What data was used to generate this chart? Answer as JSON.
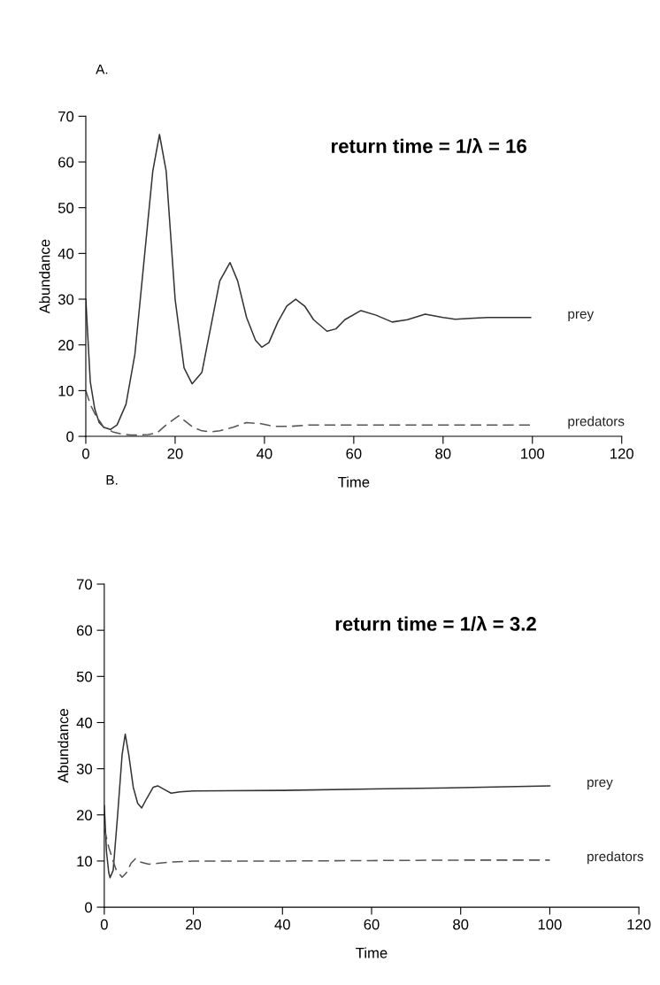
{
  "chart_data": [
    {
      "type": "line",
      "title": "A.",
      "xlabel": "Time",
      "ylabel": "Abundance",
      "annotations": [
        "return time = 1/λ = 16"
      ],
      "xlim": [
        0,
        120
      ],
      "xticks": [
        0,
        20,
        40,
        60,
        80,
        100,
        120
      ],
      "ylim": [
        0,
        70
      ],
      "yticks": [
        0,
        10,
        20,
        30,
        40,
        50,
        60,
        70
      ],
      "grid": false,
      "legend": false,
      "series": [
        {
          "name": "prey",
          "color": "#333333",
          "line_style": "solid",
          "x": [
            0,
            1,
            2,
            3,
            4,
            5.5,
            7,
            9,
            11,
            13,
            15,
            16.5,
            18,
            20,
            22,
            23.8,
            26,
            28,
            30,
            32.3,
            34,
            36,
            38,
            39.4,
            41,
            43,
            45,
            47,
            49,
            51,
            54,
            56,
            58,
            61.6,
            65,
            68.6,
            72,
            76,
            80,
            82.7,
            86,
            90,
            95,
            99.6
          ],
          "values": [
            30,
            12,
            6,
            3,
            2,
            1.5,
            2.5,
            7,
            18,
            38,
            58,
            66,
            58,
            30,
            15,
            11.5,
            14,
            24,
            34,
            38,
            34,
            26,
            21,
            19.5,
            20.5,
            25,
            28.5,
            30,
            28.5,
            25.5,
            23,
            23.5,
            25.5,
            27.5,
            26.5,
            25,
            25.5,
            26.7,
            26,
            25.6,
            25.8,
            26,
            26,
            26
          ]
        },
        {
          "name": "predators",
          "color": "#555555",
          "line_style": "dashed",
          "x": [
            0,
            1,
            2,
            3,
            4,
            6,
            8,
            10,
            12,
            14,
            16,
            18,
            20.8,
            22,
            24,
            26,
            28,
            30,
            33,
            36,
            39,
            42,
            46,
            50,
            55,
            60,
            70,
            80,
            90,
            99.6
          ],
          "values": [
            10,
            7,
            5,
            3.5,
            2,
            1,
            0.5,
            0.3,
            0.3,
            0.4,
            0.8,
            2.5,
            4.5,
            3.5,
            2,
            1.2,
            1,
            1.2,
            2,
            3,
            2.8,
            2.2,
            2.2,
            2.5,
            2.5,
            2.5,
            2.5,
            2.5,
            2.5,
            2.5
          ]
        }
      ]
    },
    {
      "type": "line",
      "title": "B.",
      "xlabel": "Time",
      "ylabel": "Abundance",
      "annotations": [
        "return time = 1/λ = 3.2"
      ],
      "xlim": [
        0,
        120
      ],
      "xticks": [
        0,
        20,
        40,
        60,
        80,
        100,
        120
      ],
      "ylim": [
        0,
        70
      ],
      "yticks": [
        0,
        10,
        20,
        30,
        40,
        50,
        60,
        70
      ],
      "grid": false,
      "legend": false,
      "series": [
        {
          "name": "prey",
          "color": "#333333",
          "line_style": "solid",
          "x": [
            0,
            0.5,
            1,
            1.3,
            2,
            3,
            4,
            4.7,
            5.5,
            6.5,
            7.5,
            8.4,
            9.5,
            11,
            12,
            13.5,
            15,
            17,
            20,
            40,
            60,
            80,
            100
          ],
          "values": [
            22,
            12,
            7.5,
            6.4,
            8,
            20,
            33,
            37.5,
            33,
            26,
            22.5,
            21.5,
            23.5,
            26,
            26.3,
            25.5,
            24.7,
            25,
            25.2,
            25.3,
            25.6,
            25.9,
            26.3
          ]
        },
        {
          "name": "predators",
          "color": "#555555",
          "line_style": "dashed",
          "x": [
            0,
            1,
            2,
            2.7,
            4,
            5,
            6,
            7,
            8,
            10,
            12,
            15,
            20,
            40,
            60,
            80,
            100
          ],
          "values": [
            17,
            13,
            10,
            8,
            6.5,
            7.5,
            9.5,
            10.5,
            9.8,
            9.3,
            9.5,
            9.8,
            10,
            10,
            10.1,
            10.2,
            10.2
          ]
        }
      ]
    }
  ]
}
